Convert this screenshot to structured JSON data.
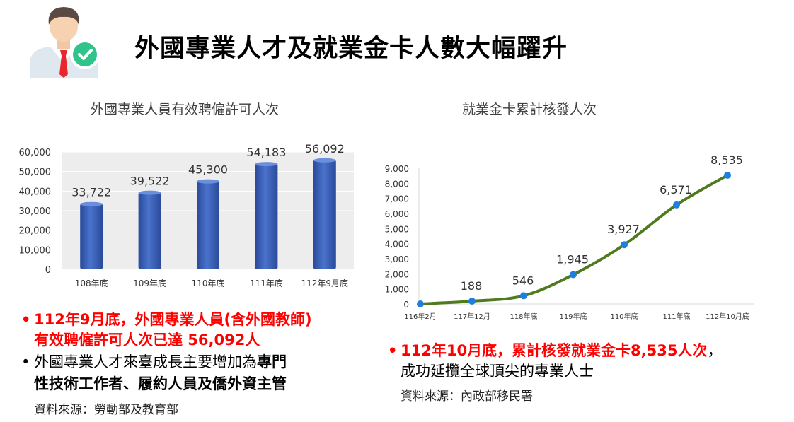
{
  "title": "外國專業人才及就業金卡人數大幅躍升",
  "icons": {
    "person": "businessman-check-icon"
  },
  "colors": {
    "bar": "#3b5fb4",
    "line": "#4f7a1e",
    "marker": "#1e7fdc",
    "highlight": "#ff0000"
  },
  "chart_data": [
    {
      "type": "bar",
      "title": "外國專業人員有效聘僱許可人次",
      "categories": [
        "108年底",
        "109年底",
        "110年底",
        "111年底",
        "112年9月底"
      ],
      "values": [
        33722,
        39522,
        45300,
        54183,
        56092
      ],
      "value_labels": [
        "33,722",
        "39,522",
        "45,300",
        "54,183",
        "56,092"
      ],
      "ylim": [
        0,
        60000
      ],
      "y_ticks": [
        "0",
        "10,000",
        "20,000",
        "30,000",
        "40,000",
        "50,000",
        "60,000"
      ],
      "grid": true,
      "legend": "none"
    },
    {
      "type": "line",
      "title": "就業金卡累計核發人次",
      "categories": [
        "116年2月",
        "117年12月",
        "118年底",
        "119年底",
        "110年底",
        "111年底",
        "112年10月底"
      ],
      "values": [
        0,
        188,
        546,
        1945,
        3927,
        6571,
        8535
      ],
      "value_labels": [
        "",
        "188",
        "546",
        "1,945",
        "3,927",
        "6,571",
        "8,535"
      ],
      "ylim": [
        0,
        9000
      ],
      "y_ticks": [
        "0",
        "1,000",
        "2,000",
        "3,000",
        "4,000",
        "5,000",
        "6,000",
        "7,000",
        "8,000",
        "9,000"
      ],
      "grid": false,
      "legend": "none"
    }
  ],
  "left_notes": {
    "bullet1_line1": "112年9月底，外國專業人員(含外國教師)",
    "bullet1_line2": "有效聘僱許可人次已達 56,092人",
    "bullet2_line1_normal": "外國專業人才來臺成長主要增加為",
    "bullet2_line1_bold": "專門",
    "bullet2_line2": "性技術工作者、履約人員及僑外資主管",
    "source": "資料來源：勞動部及教育部"
  },
  "right_notes": {
    "bullet1_red": "112年10月底，累計核發就業金卡8,535人次",
    "bullet1_tail": "，",
    "bullet1_line2": "成功延攬全球頂尖的專業人士",
    "source": "資料來源：內政部移民署"
  }
}
